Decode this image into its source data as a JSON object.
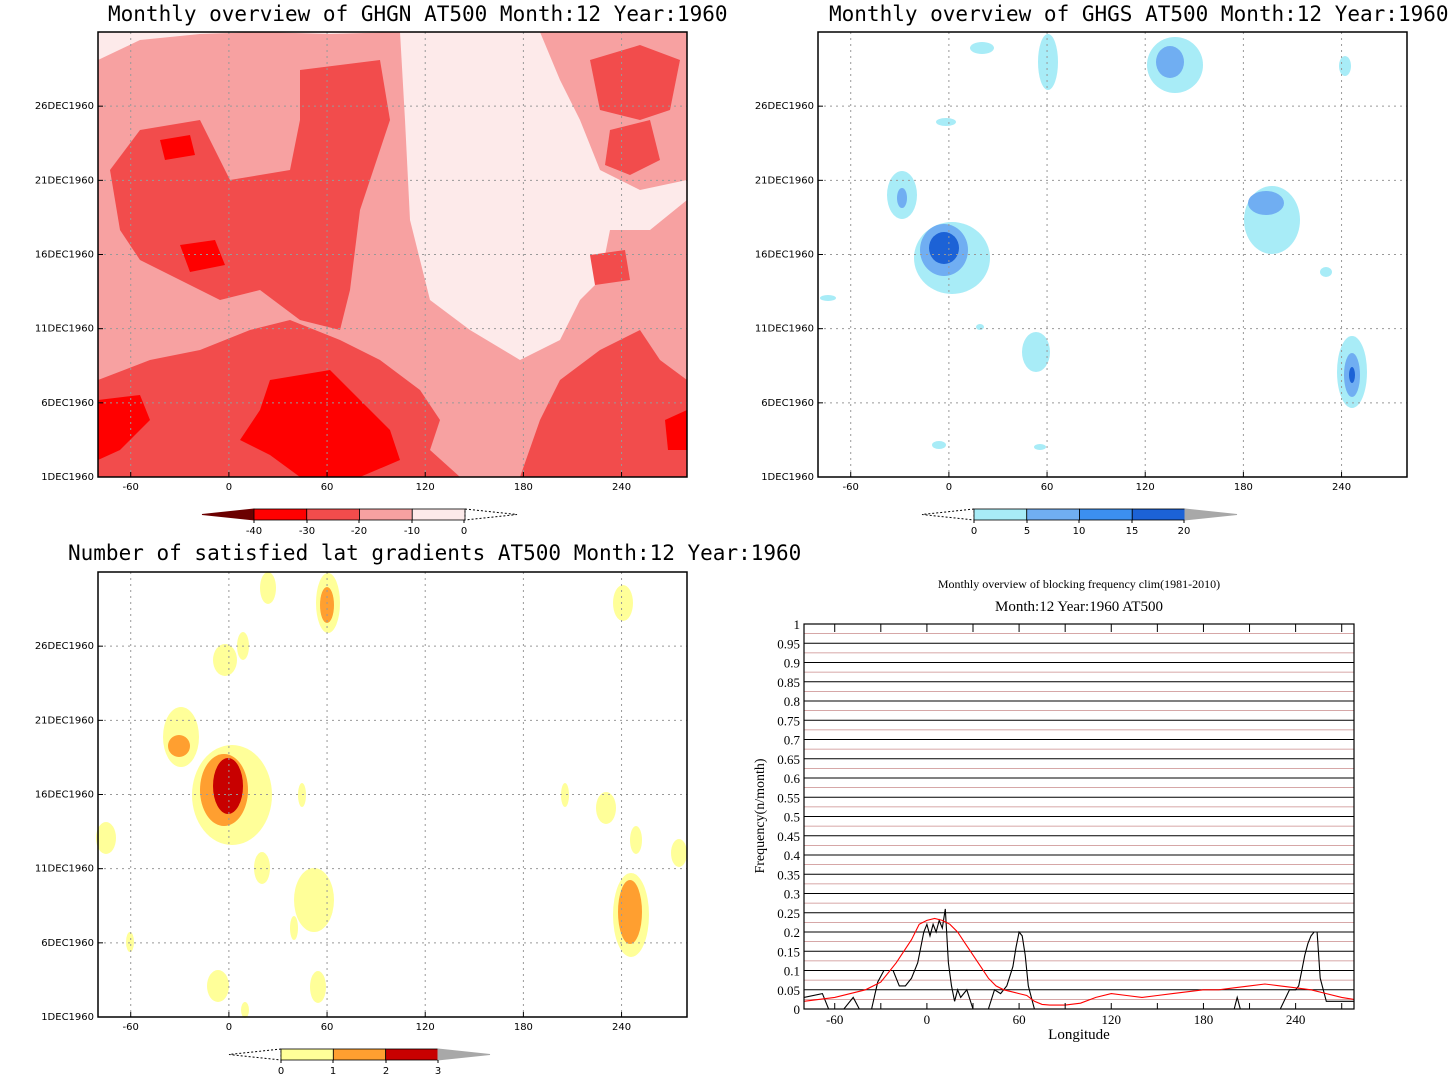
{
  "panels": {
    "ghgn": {
      "title": "Monthly overview of GHGN AT500 Month:12 Year:1960"
    },
    "ghgs": {
      "title": "Monthly overview of GHGS AT500 Month:12 Year:1960"
    },
    "grad": {
      "title": "Number of satisfied lat gradients AT500 Month:12 Year:1960"
    },
    "freq": {
      "title": "Monthly overview of blocking frequency clim(1981-2010)",
      "subtitle": "Month:12 Year:1960  AT500"
    }
  },
  "chart_data": [
    {
      "type": "heatmap",
      "name": "ghgn",
      "x_ticks": [
        "-60",
        "0",
        "60",
        "120",
        "180",
        "240"
      ],
      "x_tick_values": [
        -60,
        0,
        60,
        120,
        180,
        240
      ],
      "y_ticks": [
        "1DEC1960",
        "6DEC1960",
        "11DEC1960",
        "16DEC1960",
        "21DEC1960",
        "26DEC1960"
      ],
      "y_tick_values": [
        1,
        6,
        11,
        16,
        21,
        26
      ],
      "xlim": [
        -80,
        280
      ],
      "ylim": [
        1,
        31
      ],
      "grid": true,
      "colorbar": {
        "labels": [
          "-40",
          "-30",
          "-20",
          "-10",
          "0"
        ],
        "colors": [
          "#6b0000",
          "#ff0000",
          "#f24c4c",
          "#f7a1a1",
          "#fdeaea"
        ]
      }
    },
    {
      "type": "heatmap",
      "name": "ghgs",
      "x_ticks": [
        "-60",
        "0",
        "60",
        "120",
        "180",
        "240"
      ],
      "x_tick_values": [
        -60,
        0,
        60,
        120,
        180,
        240
      ],
      "y_ticks": [
        "1DEC1960",
        "6DEC1960",
        "11DEC1960",
        "16DEC1960",
        "21DEC1960",
        "26DEC1960"
      ],
      "y_tick_values": [
        1,
        6,
        11,
        16,
        21,
        26
      ],
      "xlim": [
        -80,
        280
      ],
      "ylim": [
        1,
        31
      ],
      "grid": true,
      "colorbar": {
        "labels": [
          "0",
          "5",
          "10",
          "15",
          "20"
        ],
        "colors": [
          "#a8ecf7",
          "#70aef2",
          "#3c8ff0",
          "#1c62d6",
          "#a8a8a8"
        ]
      }
    },
    {
      "type": "heatmap",
      "name": "grad",
      "x_ticks": [
        "-60",
        "0",
        "60",
        "120",
        "180",
        "240"
      ],
      "x_tick_values": [
        -60,
        0,
        60,
        120,
        180,
        240
      ],
      "y_ticks": [
        "1DEC1960",
        "6DEC1960",
        "11DEC1960",
        "16DEC1960",
        "21DEC1960",
        "26DEC1960"
      ],
      "y_tick_values": [
        1,
        6,
        11,
        16,
        21,
        26
      ],
      "xlim": [
        -80,
        280
      ],
      "ylim": [
        1,
        31
      ],
      "grid": true,
      "colorbar": {
        "labels": [
          "0",
          "1",
          "2",
          "3"
        ],
        "colors": [
          "#ffff99",
          "#ff9f30",
          "#c80000",
          "#a8a8a8"
        ]
      }
    },
    {
      "type": "line",
      "name": "freq",
      "xlabel": "Longitude",
      "ylabel": "Frequency(n/month)",
      "x_ticks": [
        "-60",
        "0",
        "60",
        "120",
        "180",
        "240"
      ],
      "x_tick_values": [
        -60,
        0,
        60,
        120,
        180,
        240
      ],
      "y_ticks": [
        "0",
        "0.05",
        "0.1",
        "0.15",
        "0.2",
        "0.25",
        "0.3",
        "0.35",
        "0.4",
        "0.45",
        "0.5",
        "0.55",
        "0.6",
        "0.65",
        "0.7",
        "0.75",
        "0.8",
        "0.85",
        "0.9",
        "0.95",
        "1"
      ],
      "xlim": [
        -80,
        278
      ],
      "ylim": [
        0,
        1
      ],
      "series": [
        {
          "color": "#000000",
          "x": [
            -80,
            -68,
            -64,
            -58,
            -54,
            -48,
            -44,
            -40,
            -36,
            -32,
            -28,
            -22,
            -18,
            -14,
            -10,
            -6,
            -2,
            0,
            2,
            4,
            6,
            8,
            10,
            12,
            14,
            16,
            18,
            20,
            22,
            26,
            30,
            34,
            40,
            44,
            48,
            52,
            56,
            58,
            60,
            62,
            64,
            66,
            70,
            90,
            150,
            200,
            202,
            204,
            206,
            230,
            236,
            240,
            242,
            244,
            246,
            248,
            250,
            252,
            254,
            256,
            260,
            278
          ],
          "y": [
            0.03,
            0.04,
            0.0,
            0.0,
            0.0,
            0.03,
            0.0,
            0.0,
            0.0,
            0.07,
            0.1,
            0.1,
            0.06,
            0.06,
            0.08,
            0.12,
            0.2,
            0.22,
            0.19,
            0.22,
            0.2,
            0.23,
            0.21,
            0.26,
            0.12,
            0.06,
            0.02,
            0.05,
            0.03,
            0.05,
            0.0,
            0.0,
            0.0,
            0.05,
            0.04,
            0.06,
            0.11,
            0.16,
            0.2,
            0.19,
            0.14,
            0.06,
            0.0,
            0.0,
            0.0,
            0.0,
            0.03,
            0.0,
            0.0,
            0.0,
            0.05,
            0.05,
            0.06,
            0.1,
            0.14,
            0.17,
            0.19,
            0.2,
            0.2,
            0.08,
            0.02,
            0.02
          ]
        },
        {
          "color": "#ff0000",
          "x": [
            -80,
            -60,
            -40,
            -30,
            -20,
            -10,
            -5,
            0,
            5,
            10,
            15,
            20,
            25,
            30,
            35,
            40,
            45,
            50,
            55,
            60,
            65,
            70,
            75,
            80,
            90,
            100,
            110,
            120,
            130,
            140,
            150,
            160,
            170,
            180,
            190,
            200,
            210,
            220,
            230,
            240,
            250,
            260,
            270,
            278
          ],
          "y": [
            0.02,
            0.03,
            0.05,
            0.07,
            0.12,
            0.18,
            0.22,
            0.23,
            0.235,
            0.23,
            0.22,
            0.2,
            0.17,
            0.14,
            0.11,
            0.08,
            0.06,
            0.05,
            0.045,
            0.04,
            0.035,
            0.02,
            0.012,
            0.01,
            0.01,
            0.015,
            0.03,
            0.04,
            0.035,
            0.03,
            0.035,
            0.04,
            0.045,
            0.05,
            0.05,
            0.055,
            0.06,
            0.065,
            0.06,
            0.055,
            0.05,
            0.04,
            0.03,
            0.025
          ]
        }
      ],
      "grid": true
    }
  ]
}
